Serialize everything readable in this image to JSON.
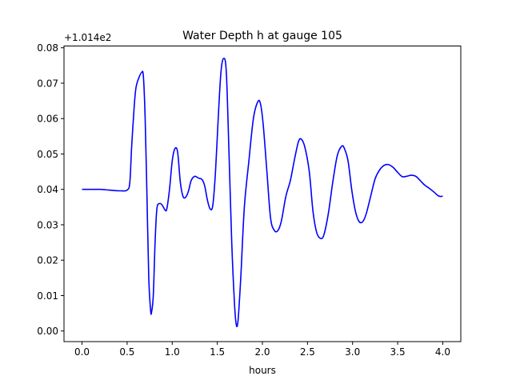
{
  "chart_data": {
    "type": "line",
    "title": "Water Depth h at gauge 105",
    "xlabel": "hours",
    "ylabel": "",
    "offset_text": "+1.014e2",
    "xlim": [
      -0.2,
      4.2
    ],
    "ylim": [
      -0.003,
      0.0805
    ],
    "grid": false,
    "x_ticks": [
      0.0,
      0.5,
      1.0,
      1.5,
      2.0,
      2.5,
      3.0,
      3.5,
      4.0
    ],
    "x_tick_labels": [
      "0.0",
      "0.5",
      "1.0",
      "1.5",
      "2.0",
      "2.5",
      "3.0",
      "3.5",
      "4.0"
    ],
    "y_ticks": [
      0.0,
      0.01,
      0.02,
      0.03,
      0.04,
      0.05,
      0.06,
      0.07,
      0.08
    ],
    "y_tick_labels": [
      "0.00",
      "0.01",
      "0.02",
      "0.03",
      "0.04",
      "0.05",
      "0.06",
      "0.07",
      "0.08"
    ],
    "series": [
      {
        "color": "#0000ff",
        "points": [
          [
            0.0,
            0.04
          ],
          [
            0.2,
            0.04
          ],
          [
            0.3,
            0.0398
          ],
          [
            0.42,
            0.0396
          ],
          [
            0.5,
            0.0398
          ],
          [
            0.53,
            0.042
          ],
          [
            0.55,
            0.052
          ],
          [
            0.58,
            0.064
          ],
          [
            0.6,
            0.069
          ],
          [
            0.63,
            0.0715
          ],
          [
            0.66,
            0.073
          ],
          [
            0.68,
            0.072
          ],
          [
            0.7,
            0.06
          ],
          [
            0.72,
            0.038
          ],
          [
            0.74,
            0.015
          ],
          [
            0.76,
            0.006
          ],
          [
            0.77,
            0.0052
          ],
          [
            0.79,
            0.01
          ],
          [
            0.81,
            0.025
          ],
          [
            0.83,
            0.0345
          ],
          [
            0.86,
            0.036
          ],
          [
            0.89,
            0.0355
          ],
          [
            0.92,
            0.0342
          ],
          [
            0.94,
            0.0345
          ],
          [
            0.97,
            0.04
          ],
          [
            1.0,
            0.048
          ],
          [
            1.03,
            0.0515
          ],
          [
            1.06,
            0.0505
          ],
          [
            1.09,
            0.042
          ],
          [
            1.12,
            0.038
          ],
          [
            1.15,
            0.0378
          ],
          [
            1.18,
            0.0395
          ],
          [
            1.21,
            0.0425
          ],
          [
            1.25,
            0.0437
          ],
          [
            1.29,
            0.0432
          ],
          [
            1.33,
            0.0428
          ],
          [
            1.36,
            0.041
          ],
          [
            1.39,
            0.037
          ],
          [
            1.42,
            0.0345
          ],
          [
            1.45,
            0.0355
          ],
          [
            1.48,
            0.045
          ],
          [
            1.51,
            0.06
          ],
          [
            1.54,
            0.073
          ],
          [
            1.57,
            0.077
          ],
          [
            1.6,
            0.073
          ],
          [
            1.63,
            0.05
          ],
          [
            1.66,
            0.025
          ],
          [
            1.69,
            0.008
          ],
          [
            1.71,
            0.0018
          ],
          [
            1.73,
            0.003
          ],
          [
            1.76,
            0.015
          ],
          [
            1.8,
            0.035
          ],
          [
            1.85,
            0.048
          ],
          [
            1.9,
            0.06
          ],
          [
            1.95,
            0.0648
          ],
          [
            1.98,
            0.064
          ],
          [
            2.01,
            0.058
          ],
          [
            2.05,
            0.045
          ],
          [
            2.09,
            0.032
          ],
          [
            2.13,
            0.0285
          ],
          [
            2.17,
            0.0283
          ],
          [
            2.21,
            0.031
          ],
          [
            2.26,
            0.038
          ],
          [
            2.31,
            0.0425
          ],
          [
            2.36,
            0.049
          ],
          [
            2.4,
            0.0535
          ],
          [
            2.43,
            0.0542
          ],
          [
            2.47,
            0.052
          ],
          [
            2.52,
            0.045
          ],
          [
            2.56,
            0.034
          ],
          [
            2.6,
            0.028
          ],
          [
            2.64,
            0.0262
          ],
          [
            2.68,
            0.027
          ],
          [
            2.73,
            0.033
          ],
          [
            2.78,
            0.042
          ],
          [
            2.83,
            0.0495
          ],
          [
            2.88,
            0.0522
          ],
          [
            2.91,
            0.0515
          ],
          [
            2.95,
            0.048
          ],
          [
            2.99,
            0.04
          ],
          [
            3.03,
            0.034
          ],
          [
            3.07,
            0.031
          ],
          [
            3.11,
            0.0308
          ],
          [
            3.15,
            0.033
          ],
          [
            3.2,
            0.038
          ],
          [
            3.25,
            0.043
          ],
          [
            3.3,
            0.0455
          ],
          [
            3.35,
            0.0468
          ],
          [
            3.4,
            0.047
          ],
          [
            3.45,
            0.0462
          ],
          [
            3.5,
            0.0448
          ],
          [
            3.55,
            0.0436
          ],
          [
            3.6,
            0.0437
          ],
          [
            3.65,
            0.044
          ],
          [
            3.7,
            0.0437
          ],
          [
            3.75,
            0.0425
          ],
          [
            3.8,
            0.0412
          ],
          [
            3.85,
            0.0403
          ],
          [
            3.9,
            0.0393
          ],
          [
            3.95,
            0.0382
          ],
          [
            3.98,
            0.038
          ],
          [
            4.0,
            0.0381
          ]
        ]
      }
    ]
  }
}
